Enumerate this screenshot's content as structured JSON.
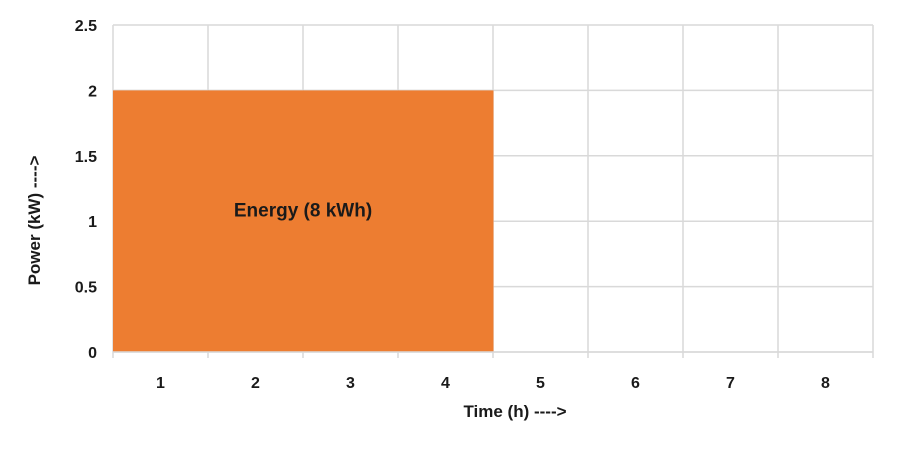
{
  "chart_data": {
    "type": "area",
    "categories": [
      "1",
      "2",
      "3",
      "4",
      "5",
      "6",
      "7",
      "8"
    ],
    "series": [
      {
        "values": [
          2,
          2,
          2,
          2,
          0,
          0,
          0,
          0
        ],
        "color": "#ED7D31"
      }
    ],
    "ylim": [
      0,
      2.5
    ],
    "yticks": [
      "0",
      "0.5",
      "1",
      "1.5",
      "2",
      "2.5"
    ],
    "xlabel": "Time (h) ---->",
    "ylabel": "Power (kW) ---->",
    "annotation": "Energy (8 kWh)",
    "grid": true,
    "legend": "none"
  }
}
